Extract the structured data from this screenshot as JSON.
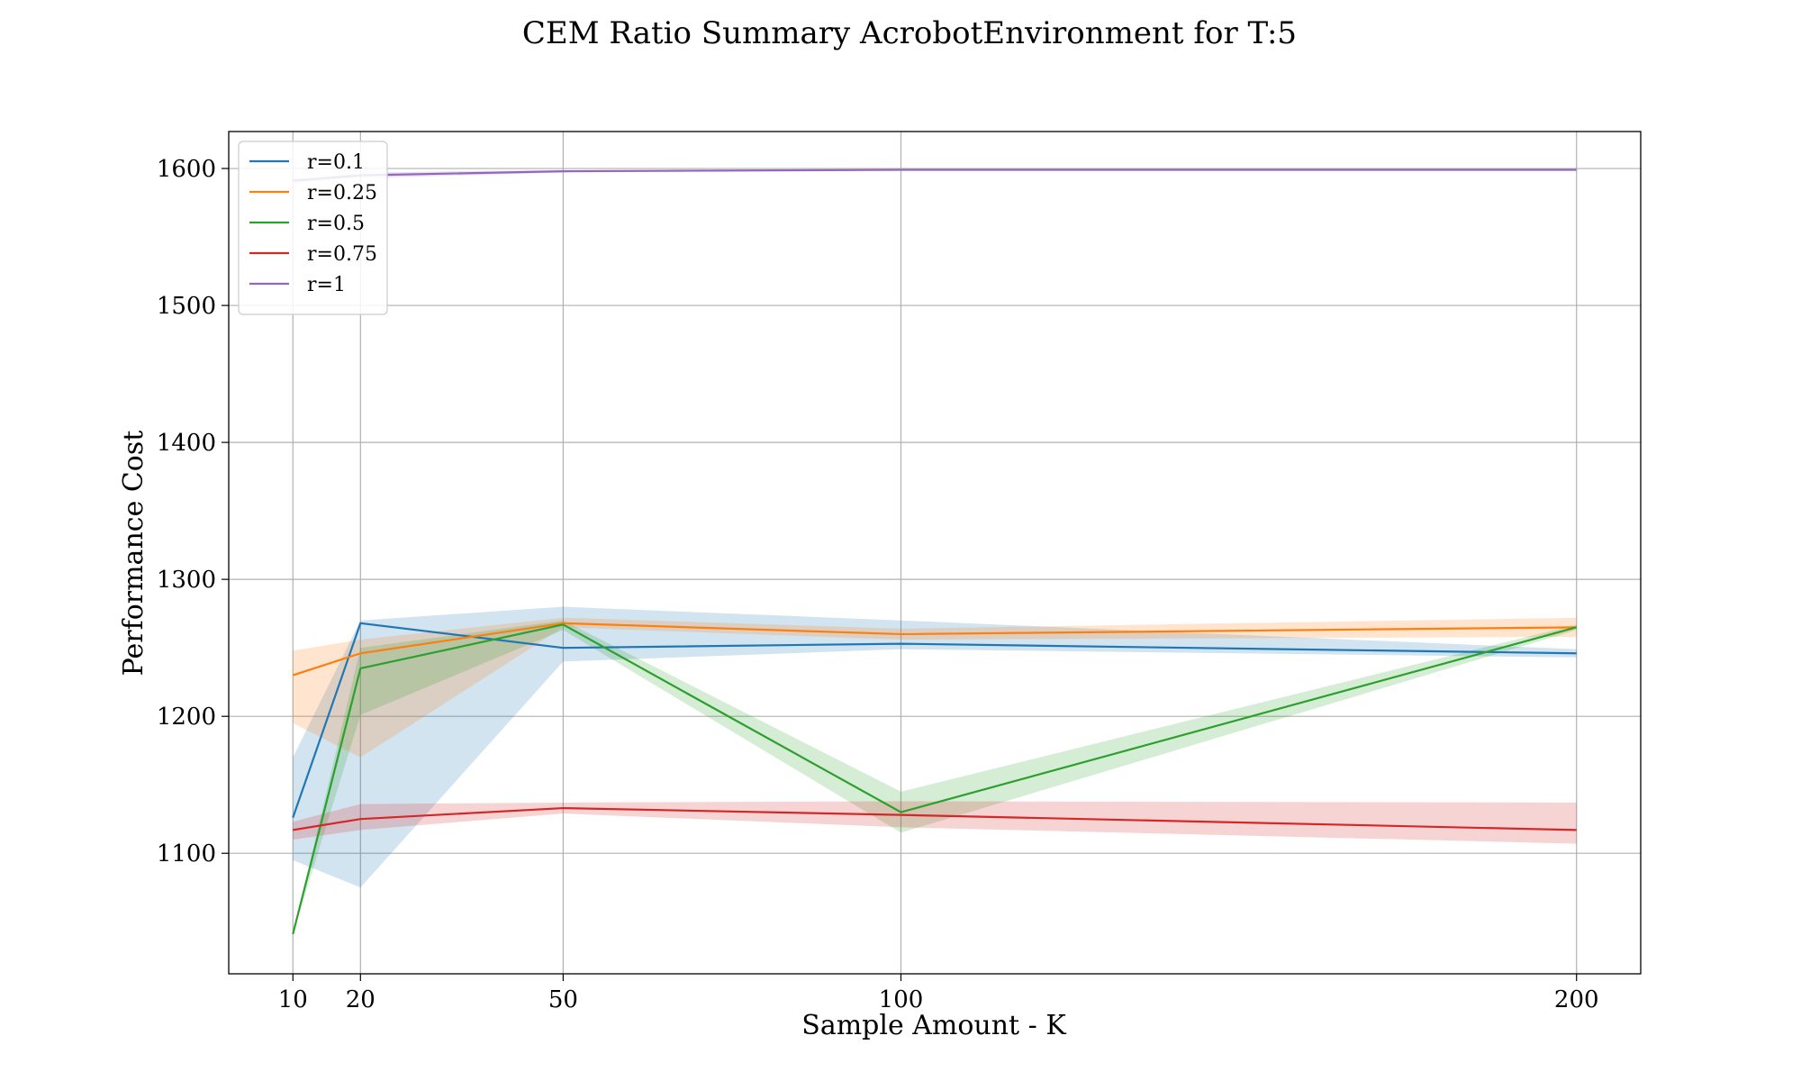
{
  "chart_data": {
    "type": "line",
    "title": "CEM Ratio Summary AcrobotEnvironment for T:5",
    "xlabel": "Sample Amount - K",
    "ylabel": "Performance Cost",
    "x": [
      10,
      20,
      50,
      100,
      200
    ],
    "xticks": [
      10,
      20,
      50,
      100,
      200
    ],
    "yticks": [
      1100,
      1200,
      1300,
      1400,
      1500,
      1600
    ],
    "xlim": [
      0.5,
      209.5
    ],
    "ylim": [
      1012,
      1627
    ],
    "grid": true,
    "legend_position": "top-left",
    "bands_shown": true,
    "series": [
      {
        "name": "r=0.1",
        "color": "#1f77b4",
        "values": [
          1126,
          1268,
          1250,
          1253,
          1246
        ],
        "lower": [
          1095,
          1075,
          1240,
          1249,
          1243
        ],
        "upper": [
          1170,
          1270,
          1280,
          1270,
          1249
        ]
      },
      {
        "name": "r=0.25",
        "color": "#ff7f0e",
        "values": [
          1230,
          1246,
          1268,
          1260,
          1265
        ],
        "lower": [
          1195,
          1170,
          1265,
          1256,
          1258
        ],
        "upper": [
          1248,
          1256,
          1272,
          1264,
          1272
        ]
      },
      {
        "name": "r=0.5",
        "color": "#2ca02c",
        "values": [
          1041,
          1235,
          1267,
          1130,
          1265
        ],
        "lower": [
          1041,
          1201,
          1263,
          1115,
          1263
        ],
        "upper": [
          1041,
          1250,
          1270,
          1145,
          1267
        ]
      },
      {
        "name": "r=0.75",
        "color": "#d62728",
        "values": [
          1117,
          1125,
          1133,
          1128,
          1117
        ],
        "lower": [
          1110,
          1117,
          1129,
          1119,
          1107
        ],
        "upper": [
          1123,
          1136,
          1137,
          1138,
          1137
        ]
      },
      {
        "name": "r=1",
        "color": "#9467bd",
        "values": [
          1591,
          1595,
          1598,
          1599,
          1599
        ],
        "lower": [
          1589,
          1593,
          1597,
          1599,
          1599
        ],
        "upper": [
          1593,
          1597,
          1599,
          1599,
          1599
        ]
      }
    ]
  }
}
